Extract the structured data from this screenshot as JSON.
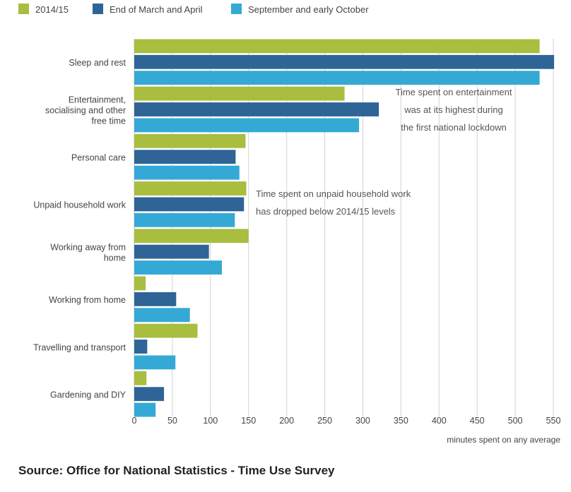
{
  "chart_data": {
    "type": "bar",
    "orientation": "horizontal",
    "categories": [
      [
        "Sleep and rest"
      ],
      [
        "Entertainment,",
        "socialising and other",
        "free time"
      ],
      [
        "Personal care"
      ],
      [
        "Unpaid household work"
      ],
      [
        "Working away from",
        "home"
      ],
      [
        "Working from home"
      ],
      [
        "Travelling and transport"
      ],
      [
        "Gardening and DIY"
      ]
    ],
    "series": [
      {
        "name": "2014/15",
        "color": "#a9bd3f",
        "values": [
          532,
          276,
          146,
          147,
          150,
          15,
          83,
          16
        ]
      },
      {
        "name": "End of March and April",
        "color": "#2e6496",
        "values": [
          551,
          321,
          133,
          144,
          98,
          55,
          17,
          39
        ]
      },
      {
        "name": "September and early October",
        "color": "#35a9d6",
        "values": [
          532,
          295,
          138,
          132,
          115,
          73,
          54,
          28
        ]
      }
    ],
    "xlim": [
      0,
      550
    ],
    "xticks": [
      "0",
      "50",
      "100",
      "150",
      "200",
      "250",
      "300",
      "350",
      "400",
      "450",
      "500",
      "550"
    ],
    "xlabel": "minutes spent on any average",
    "grid": true,
    "legend_position": "top-left",
    "annotations": [
      {
        "category_index": 1,
        "lines": [
          "Time spent on entertainment",
          "was at its highest during",
          "the first national lockdown"
        ]
      },
      {
        "category_index": 3,
        "lines": [
          "Time spent on unpaid household work",
          "has dropped below 2014/15 levels"
        ]
      }
    ]
  },
  "source": "Source: Office for National Statistics - Time Use Survey"
}
